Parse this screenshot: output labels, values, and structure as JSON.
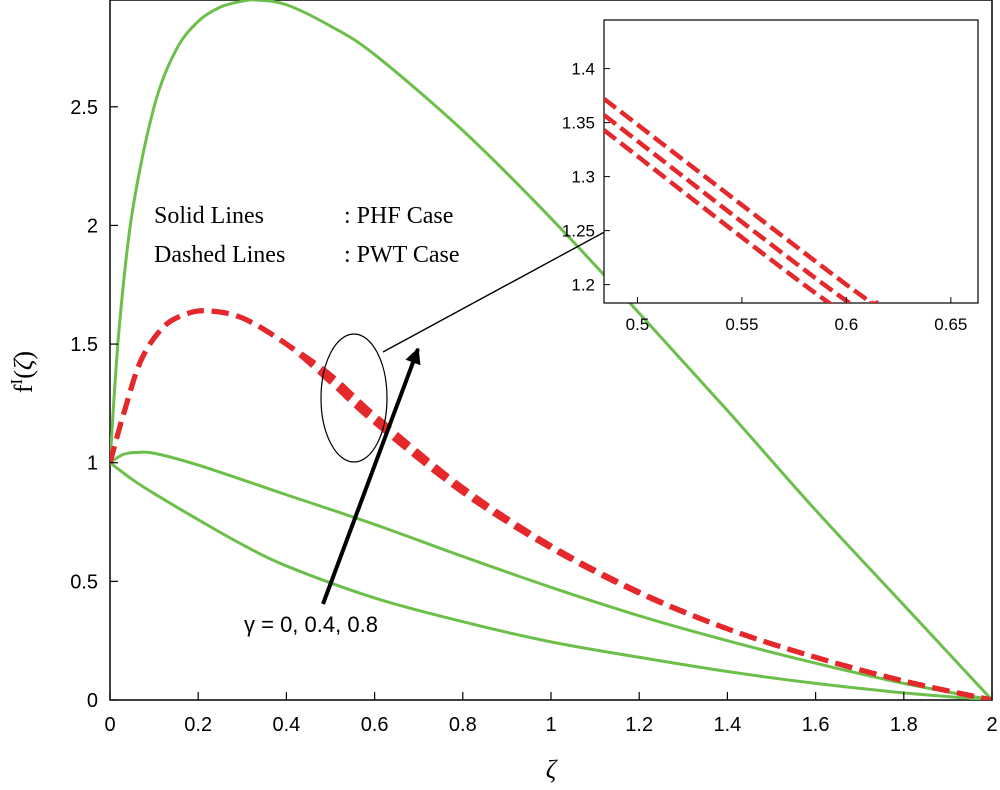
{
  "chart_data": [
    {
      "type": "line",
      "xlabel": "ζ",
      "ylabel": "f^I(ζ)",
      "xlim": [
        0,
        2
      ],
      "ylim": [
        0,
        2.95
      ],
      "xticks": [
        0,
        0.2,
        0.4,
        0.6,
        0.8,
        1,
        1.2,
        1.4,
        1.6,
        1.8,
        2
      ],
      "xtick_labels": [
        "0",
        "0.2",
        "0.4",
        "0.6",
        "0.8",
        "1",
        "1.2",
        "1.4",
        "1.6",
        "1.8",
        "2"
      ],
      "yticks": [
        0,
        0.5,
        1,
        1.5,
        2,
        2.5
      ],
      "ytick_labels": [
        "0",
        "0.5",
        "1",
        "1.5",
        "2",
        "2.5"
      ],
      "grid": false,
      "legend_text": [
        {
          "key": "Solid Lines",
          "value": ": PHF Case"
        },
        {
          "key": "Dashed Lines",
          "value": ": PWT Case"
        }
      ],
      "annotation": "γ = 0, 0.4, 0.8",
      "colors": {
        "solid": "#6dbf4b",
        "dashed": "#e4282b",
        "axes": "#000000"
      },
      "series": [
        {
          "style": "solid",
          "x": [
            0,
            0.05,
            0.1,
            0.2,
            0.3,
            0.4,
            0.6,
            0.8,
            1.0,
            1.2,
            1.4,
            1.6,
            1.8,
            2.0
          ],
          "y": [
            1.0,
            0.93,
            0.87,
            0.76,
            0.655,
            0.565,
            0.43,
            0.33,
            0.245,
            0.18,
            0.12,
            0.07,
            0.03,
            0.0
          ]
        },
        {
          "style": "solid",
          "x": [
            0,
            0.03,
            0.06,
            0.1,
            0.2,
            0.4,
            0.6,
            0.8,
            1.0,
            1.2,
            1.4,
            1.6,
            1.8,
            2.0
          ],
          "y": [
            1.0,
            1.035,
            1.043,
            1.04,
            0.99,
            0.865,
            0.74,
            0.605,
            0.475,
            0.355,
            0.25,
            0.155,
            0.07,
            0.0
          ]
        },
        {
          "style": "solid",
          "x": [
            0,
            0.02,
            0.05,
            0.1,
            0.15,
            0.2,
            0.25,
            0.3,
            0.33,
            0.4,
            0.5,
            0.6,
            0.8,
            1.0,
            1.2,
            1.4,
            1.6,
            1.8,
            2.0
          ],
          "y": [
            1.0,
            1.55,
            2.05,
            2.5,
            2.74,
            2.86,
            2.92,
            2.945,
            2.95,
            2.93,
            2.84,
            2.72,
            2.4,
            2.03,
            1.63,
            1.22,
            0.8,
            0.4,
            0.0
          ]
        },
        {
          "style": "dashed",
          "x": [
            0,
            0.03,
            0.07,
            0.12,
            0.17,
            0.22,
            0.3,
            0.4,
            0.5,
            0.6,
            0.8,
            1.0,
            1.2,
            1.4,
            1.6,
            1.8,
            2.0
          ],
          "y": [
            1.0,
            1.2,
            1.43,
            1.57,
            1.625,
            1.64,
            1.61,
            1.5,
            1.34,
            1.17,
            0.875,
            0.64,
            0.45,
            0.3,
            0.18,
            0.08,
            0.0
          ]
        },
        {
          "style": "dashed",
          "x": [
            0,
            0.03,
            0.07,
            0.12,
            0.17,
            0.22,
            0.3,
            0.4,
            0.5,
            0.6,
            0.8,
            1.0,
            1.2,
            1.4,
            1.6,
            1.8,
            2.0
          ],
          "y": [
            1.0,
            1.2,
            1.43,
            1.57,
            1.625,
            1.64,
            1.61,
            1.5,
            1.355,
            1.185,
            0.885,
            0.645,
            0.452,
            0.3,
            0.18,
            0.08,
            0.0
          ]
        },
        {
          "style": "dashed",
          "x": [
            0,
            0.03,
            0.07,
            0.12,
            0.17,
            0.22,
            0.3,
            0.4,
            0.5,
            0.6,
            0.8,
            1.0,
            1.2,
            1.4,
            1.6,
            1.8,
            2.0
          ],
          "y": [
            1.0,
            1.2,
            1.43,
            1.57,
            1.625,
            1.64,
            1.61,
            1.5,
            1.37,
            1.2,
            0.895,
            0.65,
            0.455,
            0.3,
            0.18,
            0.08,
            0.0
          ]
        }
      ]
    },
    {
      "type": "line",
      "role": "inset",
      "xlim": [
        0.484,
        0.663
      ],
      "ylim": [
        1.183,
        1.445
      ],
      "xticks": [
        0.5,
        0.55,
        0.6,
        0.65
      ],
      "xtick_labels": [
        "0.5",
        "0.55",
        "0.6",
        "0.65"
      ],
      "yticks": [
        1.2,
        1.25,
        1.3,
        1.35,
        1.4
      ],
      "ytick_labels": [
        "1.2",
        "1.25",
        "1.3",
        "1.35",
        "1.4"
      ],
      "grid": false,
      "series": [
        {
          "style": "dashed",
          "x": [
            0.484,
            0.6,
            0.612
          ],
          "y": [
            1.343,
            1.172,
            1.183
          ]
        },
        {
          "style": "dashed",
          "x": [
            0.484,
            0.6,
            0.612
          ],
          "y": [
            1.357,
            1.185,
            1.183
          ]
        },
        {
          "style": "dashed",
          "x": [
            0.484,
            0.6,
            0.615
          ],
          "y": [
            1.372,
            1.2,
            1.183
          ]
        }
      ]
    }
  ]
}
